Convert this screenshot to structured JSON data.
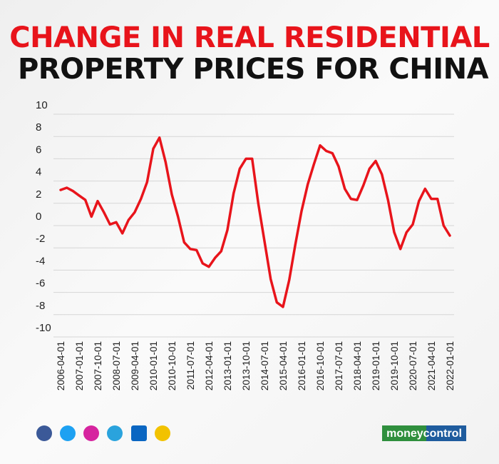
{
  "chart_data": {
    "type": "line",
    "title": [
      "CHANGE IN REAL RESIDENTIAL",
      "PROPERTY PRICES FOR CHINA"
    ],
    "title_colors": [
      "#e8141b",
      "#111111"
    ],
    "categories": [
      "2006-04-01",
      null,
      null,
      "2007-01-01",
      null,
      null,
      "2007-10-01",
      null,
      null,
      "2008-07-01",
      null,
      null,
      "2009-04-01",
      null,
      null,
      "2010-01-01",
      null,
      null,
      "2010-10-01",
      null,
      null,
      "2011-07-01",
      null,
      null,
      "2012-04-01",
      null,
      null,
      "2013-01-01",
      null,
      null,
      "2013-10-01",
      null,
      null,
      "2014-07-01",
      null,
      null,
      "2015-04-01",
      null,
      null,
      "2016-01-01",
      null,
      null,
      "2016-10-01",
      null,
      null,
      "2017-07-01",
      null,
      null,
      "2018-04-01",
      null,
      null,
      "2019-01-01",
      null,
      null,
      "2019-10-01",
      null,
      null,
      "2020-07-01",
      null,
      null,
      "2021-04-01",
      null,
      null,
      "2022-01-01"
    ],
    "values": [
      3.2,
      3.4,
      3.1,
      2.7,
      2.3,
      0.8,
      2.2,
      1.2,
      0.1,
      0.3,
      -0.7,
      0.5,
      1.2,
      2.4,
      3.9,
      6.9,
      7.9,
      5.7,
      2.8,
      0.8,
      -1.5,
      -2.1,
      -2.2,
      -3.4,
      -3.7,
      -2.9,
      -2.3,
      -0.4,
      2.9,
      5.1,
      6.0,
      6.0,
      2.0,
      -1.4,
      -4.8,
      -6.9,
      -7.3,
      -4.9,
      -1.7,
      1.3,
      3.7,
      5.5,
      7.2,
      6.7,
      6.5,
      5.3,
      3.3,
      2.4,
      2.3,
      3.6,
      5.1,
      5.8,
      4.6,
      2.3,
      -0.6,
      -2.1,
      -0.6,
      0.1,
      2.2,
      3.3,
      2.4,
      2.4,
      0.0,
      -0.9
    ],
    "color": "#e8141b",
    "ylim": [
      -10,
      10
    ],
    "yticks": [
      10,
      8,
      6,
      4,
      2,
      0,
      -2,
      -4,
      -6,
      -8,
      -10
    ],
    "grid": true,
    "brand": "moneycontrol"
  }
}
